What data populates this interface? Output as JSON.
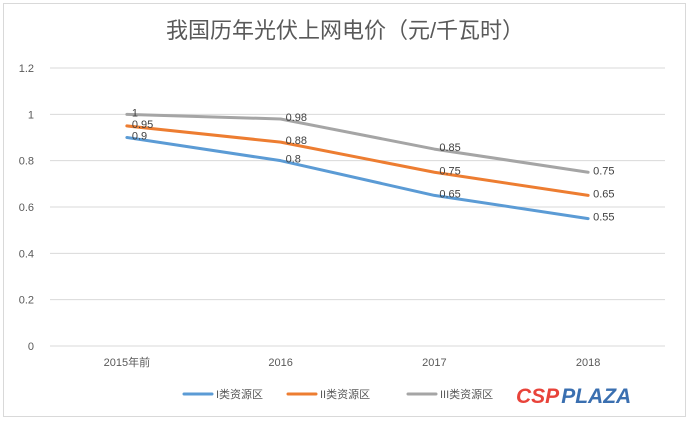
{
  "chart_data": {
    "type": "line",
    "title": "我国历年光伏上网电价（元/千瓦时）",
    "categories": [
      "2015年前",
      "2016",
      "2017",
      "2018"
    ],
    "ylim": [
      0,
      1.2
    ],
    "yticks": [
      "0",
      "0.2",
      "0.4",
      "0.6",
      "0.8",
      "1",
      "1.2"
    ],
    "grid": true,
    "legend_position": "bottom",
    "series": [
      {
        "name": "I类资源区",
        "values": [
          0.9,
          0.8,
          0.65,
          0.55
        ],
        "labels": [
          "0.9",
          "0.8",
          "0.65",
          "0.55"
        ],
        "color": "#5b9bd5"
      },
      {
        "name": "II类资源区",
        "values": [
          0.95,
          0.88,
          0.75,
          0.65
        ],
        "labels": [
          "0.95",
          "0.88",
          "0.75",
          "0.65"
        ],
        "color": "#ed7d31"
      },
      {
        "name": "III类资源区",
        "values": [
          1,
          0.98,
          0.85,
          0.75
        ],
        "labels": [
          "1",
          "0.98",
          "0.85",
          "0.75"
        ],
        "color": "#a5a5a5"
      }
    ]
  },
  "watermark": {
    "text_csp": "CSP",
    "text_plaza": "PLAZA",
    "color_csp": "#e8433a",
    "color_plaza": "#3a6fb0"
  }
}
